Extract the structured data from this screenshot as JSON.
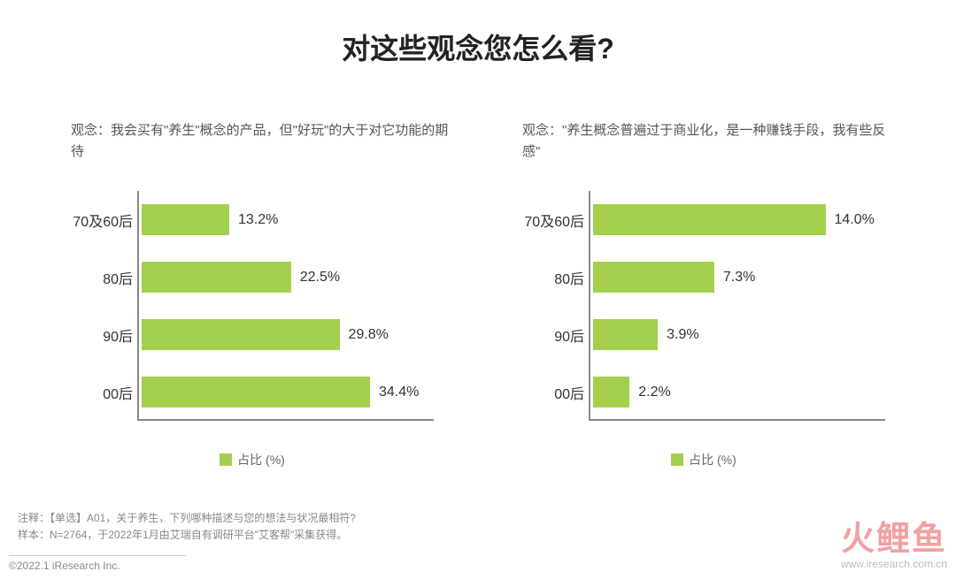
{
  "title": "对这些观念您怎么看?",
  "bar_color": "#a4cf4d",
  "axis_color": "#888888",
  "text_color": "#333333",
  "label_color": "#555555",
  "legend_label": "占比 (%)",
  "chart_left": {
    "subtitle": "观念：我会买有\"养生\"概念的产品，但\"好玩\"的大于对它功能的期待",
    "max_value": 40,
    "bars": [
      {
        "category": "70及60后",
        "value": 13.2,
        "value_label": "13.2%"
      },
      {
        "category": "80后",
        "value": 22.5,
        "value_label": "22.5%"
      },
      {
        "category": "90后",
        "value": 29.8,
        "value_label": "29.8%"
      },
      {
        "category": "00后",
        "value": 34.4,
        "value_label": "34.4%"
      }
    ]
  },
  "chart_right": {
    "subtitle": "观念：\"养生概念普遍过于商业化，是一种赚钱手段，我有些反感\"",
    "max_value": 16,
    "bars": [
      {
        "category": "70及60后",
        "value": 14.0,
        "value_label": "14.0%"
      },
      {
        "category": "80后",
        "value": 7.3,
        "value_label": "7.3%"
      },
      {
        "category": "90后",
        "value": 3.9,
        "value_label": "3.9%"
      },
      {
        "category": "00后",
        "value": 2.2,
        "value_label": "2.2%"
      }
    ]
  },
  "note1": "注释：【单选】A01，关于养生，下列哪种描述与您的想法与状况最相符?",
  "note2": "样本：N=2764，于2022年1月由艾瑞自有调研平台\"艾客帮\"采集获得。",
  "copyright": "©2022.1 iResearch Inc.",
  "watermark_main": "火鲤鱼",
  "watermark_sub": "www.iresearch.com.cn"
}
